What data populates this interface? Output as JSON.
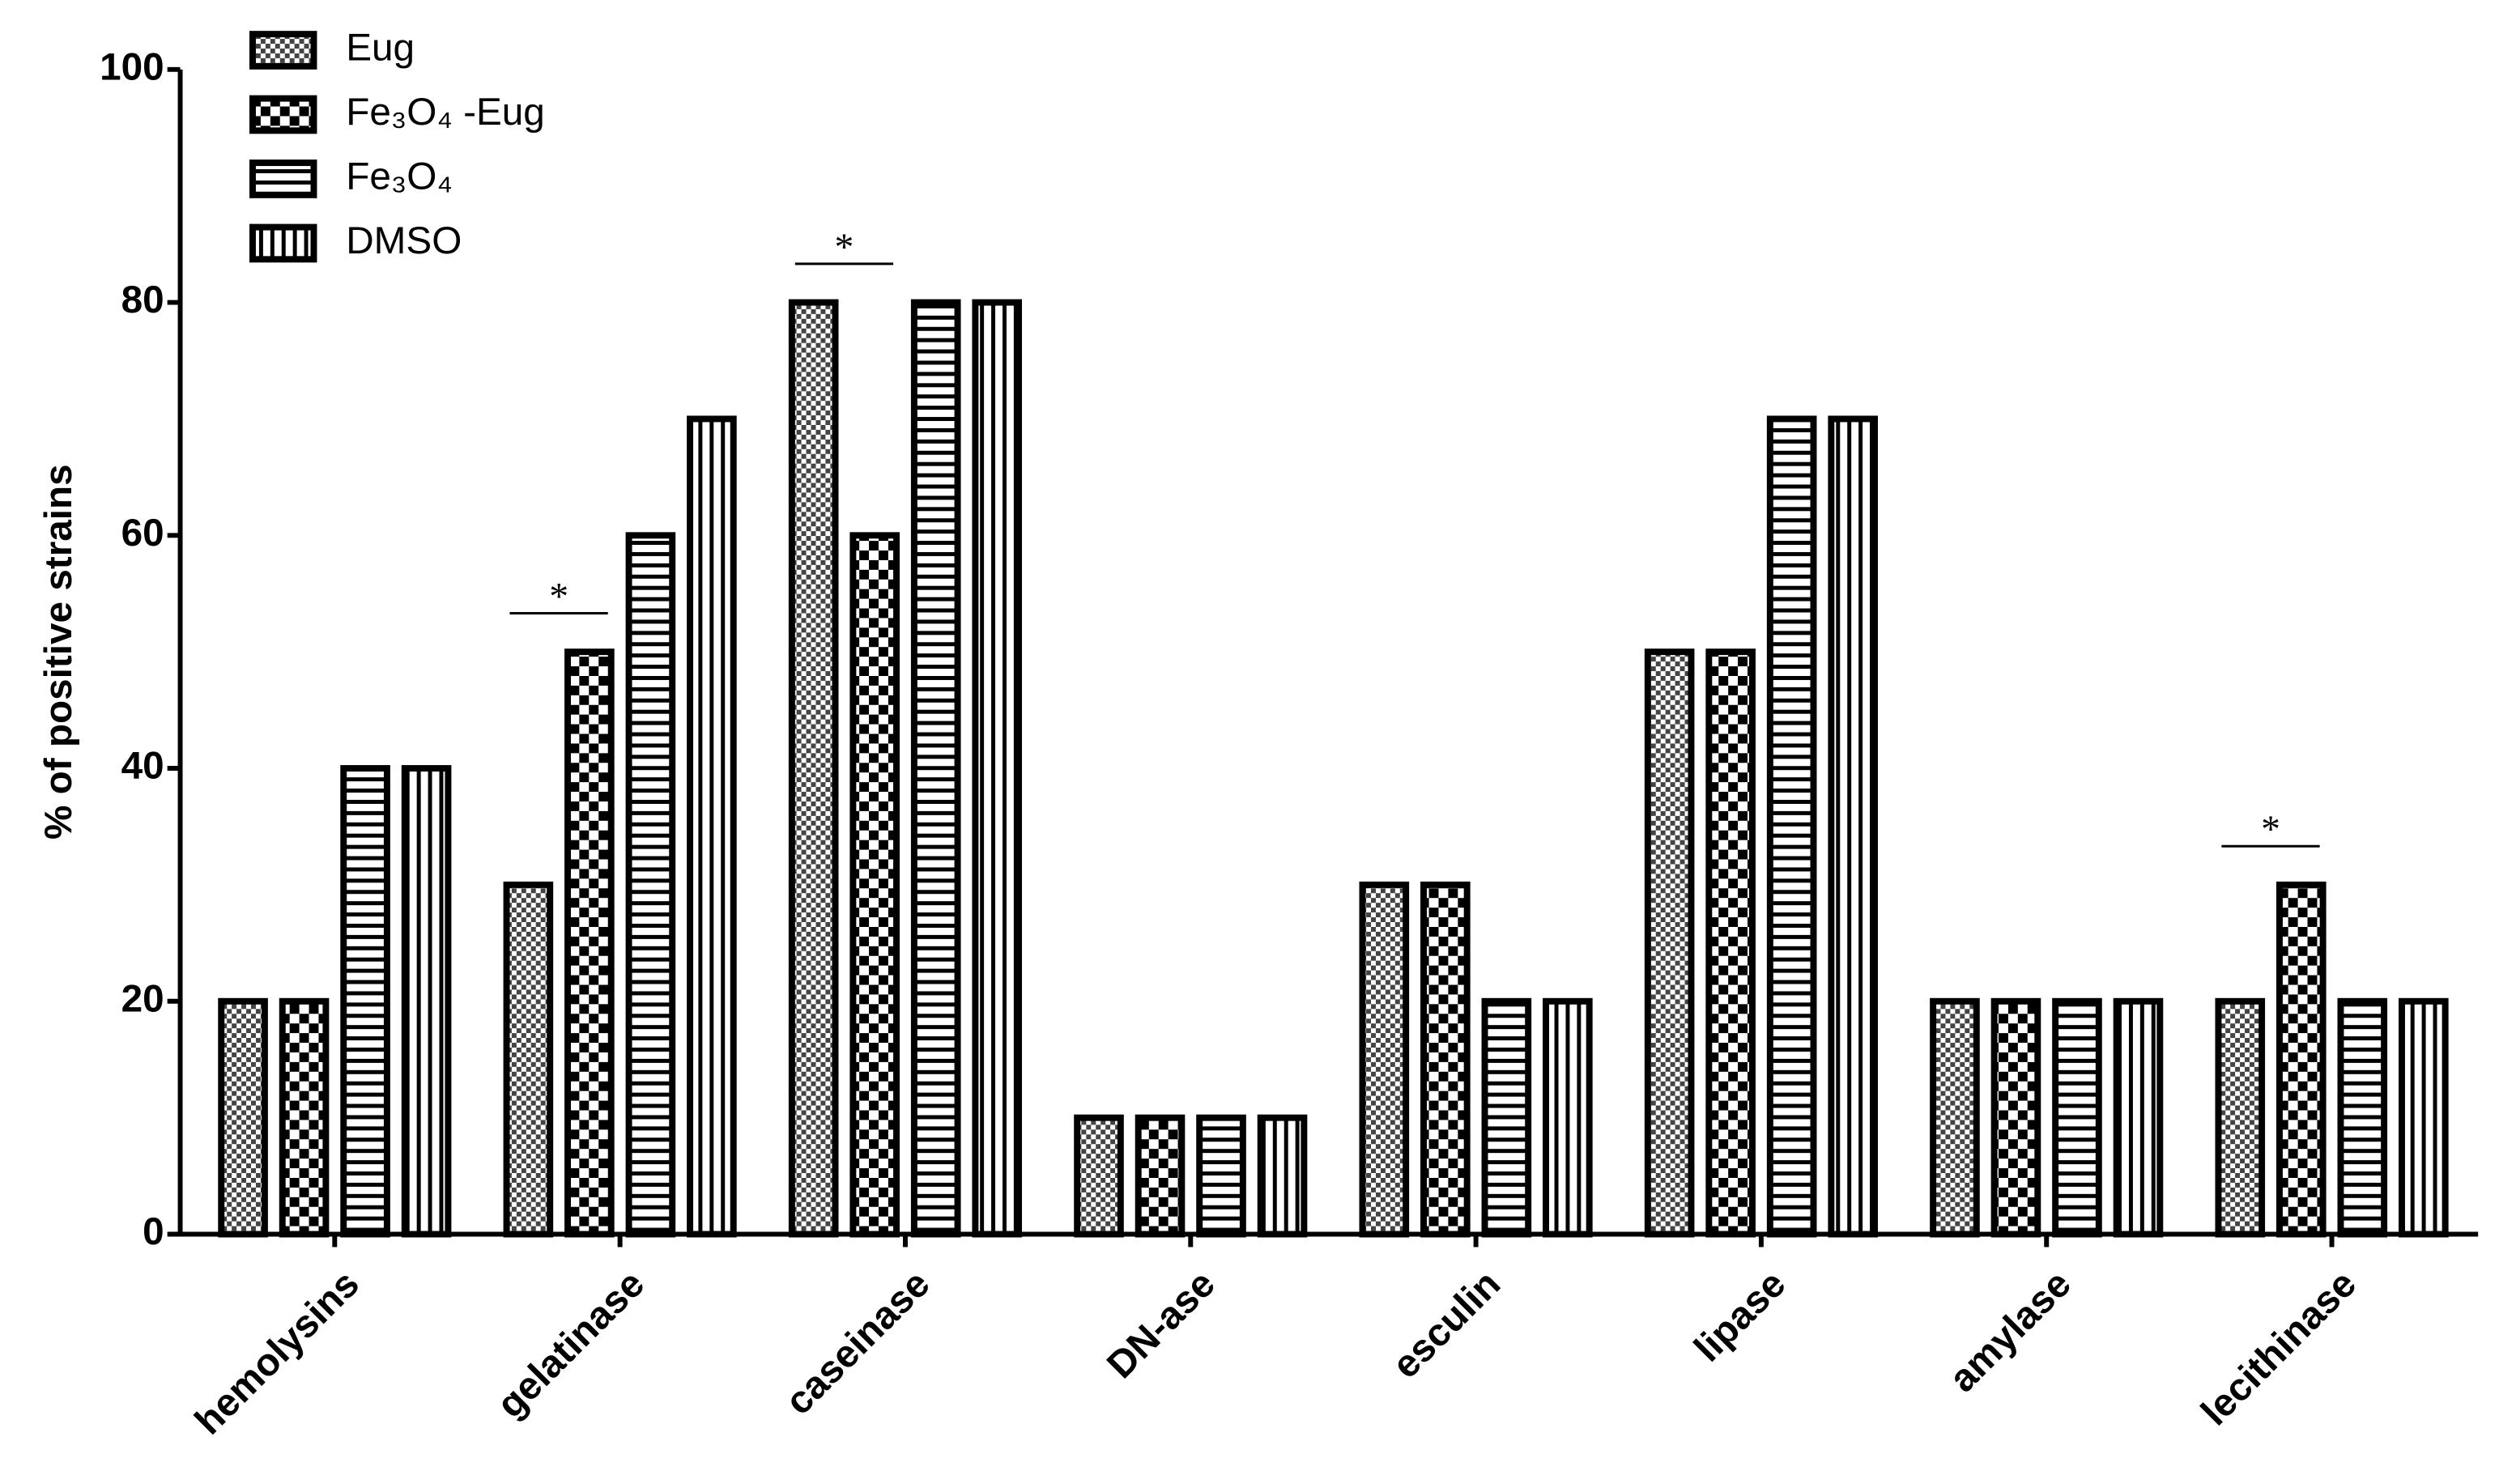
{
  "chart_data": {
    "type": "bar",
    "y_label": "% of positive strains",
    "categories": [
      "hemolysins",
      "gelatinase",
      "caseinase",
      "DN-ase",
      "esculin",
      "lipase",
      "amylase",
      "lecithinase"
    ],
    "series": [
      {
        "name": "Eug",
        "color": "#000000",
        "pattern": "fine-checker",
        "values": [
          20,
          30,
          80,
          10,
          30,
          50,
          20,
          20
        ]
      },
      {
        "name": "Fe₃O₄ -Eug",
        "color": "#000000",
        "pattern": "coarse-checker",
        "values": [
          20,
          50,
          60,
          10,
          30,
          50,
          20,
          30
        ]
      },
      {
        "name": "Fe₃O₄",
        "color": "#000000",
        "pattern": "horizontal",
        "values": [
          40,
          60,
          80,
          10,
          20,
          70,
          20,
          20
        ]
      },
      {
        "name": "DMSO",
        "color": "#000000",
        "pattern": "vertical",
        "values": [
          40,
          70,
          80,
          10,
          20,
          70,
          20,
          20
        ]
      }
    ],
    "annotations": [
      {
        "text": "*",
        "category": "gelatinase"
      },
      {
        "text": "*",
        "category": "caseinase"
      },
      {
        "text": "*",
        "category": "lecithinase"
      }
    ],
    "ylim": [
      0,
      100
    ],
    "yticks": [
      0,
      20,
      40,
      60,
      80,
      100
    ],
    "grid": false,
    "legend": "top-left"
  }
}
